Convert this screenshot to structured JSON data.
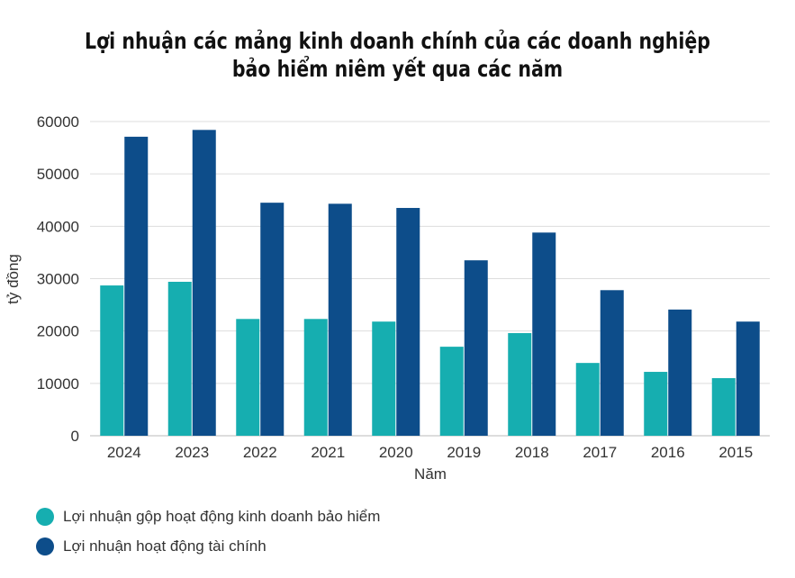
{
  "chart_data": {
    "type": "bar",
    "title": "Lợi nhuận các mảng kinh doanh chính của các doanh nghiệp bảo hiểm niêm yết qua các năm",
    "title_lines": [
      "Lợi nhuận các mảng kinh doanh chính của các doanh nghiệp",
      "bảo hiểm niêm yết qua các năm"
    ],
    "xlabel": "Năm",
    "ylabel": "tỷ đồng",
    "ylim": [
      0,
      60000
    ],
    "yticks": [
      "0",
      "10000",
      "20000",
      "30000",
      "40000",
      "50000",
      "60000"
    ],
    "grid": true,
    "legend_position": "bottom-left",
    "categories": [
      "2024",
      "2023",
      "2022",
      "2021",
      "2020",
      "2019",
      "2018",
      "2017",
      "2016",
      "2015"
    ],
    "series": [
      {
        "name": "Lợi nhuận gộp hoạt động kinh doanh bảo hiểm",
        "color": "#16aeb0",
        "values": [
          28700,
          29400,
          22300,
          22300,
          21800,
          17000,
          19600,
          13900,
          12200,
          11000
        ]
      },
      {
        "name": "Lợi nhuận hoạt động tài chính",
        "color": "#0d4d8a",
        "values": [
          57100,
          58400,
          44500,
          44300,
          43500,
          33500,
          38800,
          27800,
          24100,
          21800
        ]
      }
    ]
  }
}
